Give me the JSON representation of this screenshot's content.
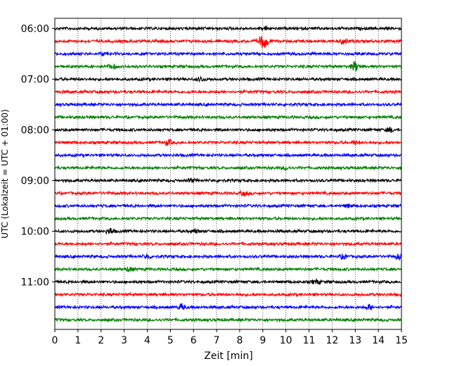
{
  "chart_data": {
    "type": "line",
    "title": "",
    "xlabel": "Zeit  [min]",
    "ylabel": "UTC (Lokalzeit = UTC + 01:00)",
    "xlim": [
      0,
      15
    ],
    "x_ticks": [
      0,
      1,
      2,
      3,
      4,
      5,
      6,
      7,
      8,
      9,
      10,
      11,
      12,
      13,
      14,
      15
    ],
    "x_tick_labels": [
      "0",
      "1",
      "2",
      "3",
      "4",
      "5",
      "6",
      "7",
      "8",
      "9",
      "10",
      "11",
      "12",
      "13",
      "14",
      "15"
    ],
    "y_tick_labels": [
      "06:00",
      "07:00",
      "08:00",
      "09:00",
      "10:00",
      "11:00"
    ],
    "grid": "vertical dotted at each minute",
    "trace_minutes": 15,
    "traces": [
      {
        "start": "06:00",
        "color": "#000000",
        "events": [
          {
            "t": 9.1,
            "a": 2
          }
        ]
      },
      {
        "start": "06:15",
        "color": "#ff0000",
        "events": [
          {
            "t": 8.95,
            "a": 7
          },
          {
            "t": 9.15,
            "a": 6
          },
          {
            "t": 12.5,
            "a": 4
          }
        ]
      },
      {
        "start": "06:30",
        "color": "#0000ff",
        "events": [
          {
            "t": 2.1,
            "a": 2
          }
        ]
      },
      {
        "start": "06:45",
        "color": "#008000",
        "events": [
          {
            "t": 2.5,
            "a": 3
          },
          {
            "t": 13.0,
            "a": 7
          }
        ]
      },
      {
        "start": "07:00",
        "color": "#000000",
        "events": [
          {
            "t": 6.3,
            "a": 3
          }
        ]
      },
      {
        "start": "07:15",
        "color": "#ff0000",
        "events": []
      },
      {
        "start": "07:30",
        "color": "#0000ff",
        "events": []
      },
      {
        "start": "07:45",
        "color": "#008000",
        "events": []
      },
      {
        "start": "08:00",
        "color": "#000000",
        "events": [
          {
            "t": 14.5,
            "a": 3
          }
        ]
      },
      {
        "start": "08:15",
        "color": "#ff0000",
        "events": [
          {
            "t": 4.9,
            "a": 4
          },
          {
            "t": 13.0,
            "a": 2
          }
        ]
      },
      {
        "start": "08:30",
        "color": "#0000ff",
        "events": []
      },
      {
        "start": "08:45",
        "color": "#008000",
        "events": [
          {
            "t": 10.0,
            "a": 2
          }
        ]
      },
      {
        "start": "09:00",
        "color": "#000000",
        "events": [
          {
            "t": 5.9,
            "a": 2
          }
        ]
      },
      {
        "start": "09:15",
        "color": "#ff0000",
        "events": [
          {
            "t": 8.2,
            "a": 3
          }
        ]
      },
      {
        "start": "09:30",
        "color": "#0000ff",
        "events": [
          {
            "t": 12.7,
            "a": 2
          }
        ]
      },
      {
        "start": "09:45",
        "color": "#008000",
        "events": []
      },
      {
        "start": "10:00",
        "color": "#000000",
        "events": [
          {
            "t": 2.4,
            "a": 4
          },
          {
            "t": 6.1,
            "a": 2
          }
        ]
      },
      {
        "start": "10:15",
        "color": "#ff0000",
        "events": []
      },
      {
        "start": "10:30",
        "color": "#0000ff",
        "events": [
          {
            "t": 4.0,
            "a": 3
          },
          {
            "t": 12.5,
            "a": 3
          },
          {
            "t": 14.9,
            "a": 4
          }
        ]
      },
      {
        "start": "10:45",
        "color": "#008000",
        "events": [
          {
            "t": 3.2,
            "a": 3
          }
        ]
      },
      {
        "start": "11:00",
        "color": "#000000",
        "events": [
          {
            "t": 11.3,
            "a": 3
          }
        ]
      },
      {
        "start": "11:15",
        "color": "#ff0000",
        "events": []
      },
      {
        "start": "11:30",
        "color": "#0000ff",
        "events": [
          {
            "t": 5.5,
            "a": 4
          },
          {
            "t": 13.6,
            "a": 3
          }
        ]
      },
      {
        "start": "11:45",
        "color": "#008000",
        "events": []
      }
    ]
  }
}
